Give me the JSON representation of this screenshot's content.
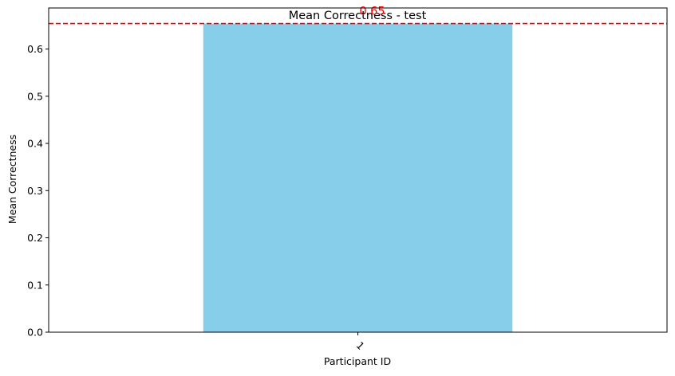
{
  "chart_data": {
    "type": "bar",
    "title": "Mean Correctness - test",
    "xlabel": "Participant ID",
    "ylabel": "Mean Correctness",
    "categories": [
      "1"
    ],
    "values": [
      0.654
    ],
    "ylim": [
      0,
      0.687
    ],
    "yticks": [
      "0.0",
      "0.1",
      "0.2",
      "0.3",
      "0.4",
      "0.5",
      "0.6"
    ],
    "bar_color": "#87ceeb",
    "reference_line": {
      "value": 0.654,
      "label": "0.65",
      "color": "#ff0000",
      "style": "dashed"
    },
    "grid": false,
    "x_tick_rotation": 45
  }
}
